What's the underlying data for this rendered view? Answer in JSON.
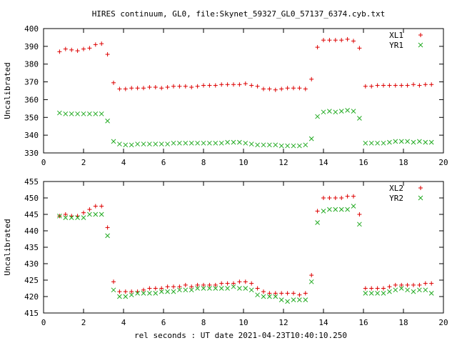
{
  "chart_data": {
    "title": "HIRES continuum, GL0, file:Skynet_59327_GL0_57137_6374.cyb.txt",
    "xlabel": "rel seconds : UT date 2021-04-23T10:40:10.250",
    "colors": {
      "series1": "#dd0000",
      "series2": "#22aa22",
      "axes": "#000000"
    },
    "panels": [
      {
        "type": "scatter",
        "ylabel": "Uncalibrated",
        "xlim": [
          0,
          20
        ],
        "ylim": [
          330,
          400
        ],
        "xticks": [
          0,
          2,
          4,
          6,
          8,
          10,
          12,
          14,
          16,
          18,
          20
        ],
        "yticks": [
          330,
          340,
          350,
          360,
          370,
          380,
          390,
          400
        ],
        "legend_position": "top-right",
        "series": [
          {
            "name": "XL1",
            "marker": "plus",
            "x": [
              0.8,
              1.1,
              1.4,
              1.7,
              2.0,
              2.3,
              2.6,
              2.9,
              3.2,
              3.5,
              3.8,
              4.1,
              4.4,
              4.7,
              5.0,
              5.3,
              5.6,
              5.9,
              6.2,
              6.5,
              6.8,
              7.1,
              7.4,
              7.7,
              8.0,
              8.3,
              8.6,
              8.9,
              9.2,
              9.5,
              9.8,
              10.1,
              10.4,
              10.7,
              11.0,
              11.3,
              11.6,
              11.9,
              12.2,
              12.5,
              12.8,
              13.1,
              13.4,
              13.7,
              14.0,
              14.3,
              14.6,
              14.9,
              15.2,
              15.5,
              15.8,
              16.1,
              16.4,
              16.7,
              17.0,
              17.3,
              17.6,
              17.9,
              18.2,
              18.5,
              18.8,
              19.1,
              19.4
            ],
            "y": [
              387,
              388.5,
              388,
              387.5,
              388.5,
              389,
              391,
              391.5,
              385.5,
              369.5,
              366,
              366,
              366.5,
              366.5,
              366.5,
              367,
              367,
              366.5,
              367,
              367.5,
              367.5,
              367.5,
              367,
              367.5,
              368,
              368,
              368,
              368.5,
              368.5,
              368.5,
              368.5,
              369,
              368,
              367.5,
              366,
              366,
              365.5,
              366,
              366.5,
              366.5,
              366.5,
              366,
              371.5,
              389.5,
              393.5,
              393.5,
              393.5,
              393.5,
              394,
              393,
              389,
              367.5,
              367.5,
              368,
              368,
              368,
              368,
              368,
              368,
              368.5,
              368,
              368.5,
              368.5
            ]
          },
          {
            "name": "YR1",
            "marker": "cross",
            "x": [
              0.8,
              1.1,
              1.4,
              1.7,
              2.0,
              2.3,
              2.6,
              2.9,
              3.2,
              3.5,
              3.8,
              4.1,
              4.4,
              4.7,
              5.0,
              5.3,
              5.6,
              5.9,
              6.2,
              6.5,
              6.8,
              7.1,
              7.4,
              7.7,
              8.0,
              8.3,
              8.6,
              8.9,
              9.2,
              9.5,
              9.8,
              10.1,
              10.4,
              10.7,
              11.0,
              11.3,
              11.6,
              11.9,
              12.2,
              12.5,
              12.8,
              13.1,
              13.4,
              13.7,
              14.0,
              14.3,
              14.6,
              14.9,
              15.2,
              15.5,
              15.8,
              16.1,
              16.4,
              16.7,
              17.0,
              17.3,
              17.6,
              17.9,
              18.2,
              18.5,
              18.8,
              19.1,
              19.4
            ],
            "y": [
              352.5,
              352,
              352,
              352,
              352,
              352,
              352,
              352,
              348,
              336.5,
              335,
              334.5,
              334.5,
              335,
              335,
              335,
              335,
              335,
              335,
              335.5,
              335.5,
              335.5,
              335.5,
              335.5,
              335.5,
              335.5,
              335.5,
              335.5,
              336,
              336,
              336,
              335.5,
              335,
              334.5,
              334.5,
              334.5,
              334.5,
              334,
              334,
              334,
              334,
              334.5,
              338,
              350.5,
              353,
              353.5,
              353,
              353.5,
              354,
              353.5,
              349.5,
              335.5,
              335.5,
              335.5,
              335.5,
              336,
              336.5,
              336.5,
              336.5,
              336,
              336.5,
              336,
              336
            ]
          }
        ]
      },
      {
        "type": "scatter",
        "ylabel": "Uncalibrated",
        "xlim": [
          0,
          20
        ],
        "ylim": [
          415,
          455
        ],
        "xticks": [
          0,
          2,
          4,
          6,
          8,
          10,
          12,
          14,
          16,
          18,
          20
        ],
        "yticks": [
          415,
          420,
          425,
          430,
          435,
          440,
          445,
          450,
          455
        ],
        "legend_position": "top-right",
        "series": [
          {
            "name": "XL2",
            "marker": "plus",
            "x": [
              0.8,
              1.1,
              1.4,
              1.7,
              2.0,
              2.3,
              2.6,
              2.9,
              3.2,
              3.5,
              3.8,
              4.1,
              4.4,
              4.7,
              5.0,
              5.3,
              5.6,
              5.9,
              6.2,
              6.5,
              6.8,
              7.1,
              7.4,
              7.7,
              8.0,
              8.3,
              8.6,
              8.9,
              9.2,
              9.5,
              9.8,
              10.1,
              10.4,
              10.7,
              11.0,
              11.3,
              11.6,
              11.9,
              12.2,
              12.5,
              12.8,
              13.1,
              13.4,
              13.7,
              14.0,
              14.3,
              14.6,
              14.9,
              15.2,
              15.5,
              15.8,
              16.1,
              16.4,
              16.7,
              17.0,
              17.3,
              17.6,
              17.9,
              18.2,
              18.5,
              18.8,
              19.1,
              19.4
            ],
            "y": [
              444.5,
              445,
              444.5,
              444.5,
              445.5,
              446.5,
              447.5,
              447.5,
              441,
              424.5,
              421.5,
              421.5,
              421.5,
              421.5,
              422,
              422.5,
              422.5,
              422.5,
              423,
              423,
              423,
              423.5,
              423,
              423.5,
              423.5,
              423.5,
              423.5,
              424,
              424,
              424,
              424.5,
              424.5,
              424,
              422.5,
              421.5,
              421,
              421,
              421,
              421,
              421,
              420.5,
              421,
              426.5,
              446,
              450,
              450,
              450,
              450,
              450.5,
              450.5,
              445,
              422.5,
              422.5,
              422.5,
              422.5,
              423,
              423.5,
              423.5,
              423.5,
              423.5,
              423.5,
              424,
              424
            ]
          },
          {
            "name": "YR2",
            "marker": "cross",
            "x": [
              0.8,
              1.1,
              1.4,
              1.7,
              2.0,
              2.3,
              2.6,
              2.9,
              3.2,
              3.5,
              3.8,
              4.1,
              4.4,
              4.7,
              5.0,
              5.3,
              5.6,
              5.9,
              6.2,
              6.5,
              6.8,
              7.1,
              7.4,
              7.7,
              8.0,
              8.3,
              8.6,
              8.9,
              9.2,
              9.5,
              9.8,
              10.1,
              10.4,
              10.7,
              11.0,
              11.3,
              11.6,
              11.9,
              12.2,
              12.5,
              12.8,
              13.1,
              13.4,
              13.7,
              14.0,
              14.3,
              14.6,
              14.9,
              15.2,
              15.5,
              15.8,
              16.1,
              16.4,
              16.7,
              17.0,
              17.3,
              17.6,
              17.9,
              18.2,
              18.5,
              18.8,
              19.1,
              19.4
            ],
            "y": [
              444.5,
              444,
              444,
              444,
              444,
              445,
              445,
              445,
              438.5,
              422,
              420,
              420,
              420.5,
              421,
              421,
              421,
              421,
              421.5,
              421.5,
              421.5,
              422,
              422,
              422,
              422.5,
              422.5,
              422.5,
              422.5,
              422.5,
              422.5,
              423,
              422.5,
              422.5,
              422,
              420.5,
              420,
              420,
              420,
              419,
              418.5,
              419,
              419,
              419,
              424.5,
              442.5,
              446,
              446.5,
              446.5,
              446.5,
              446.5,
              447.5,
              442,
              421,
              421,
              421,
              421,
              421.5,
              422,
              422.5,
              422,
              421.5,
              422,
              422,
              421
            ]
          }
        ]
      }
    ]
  }
}
